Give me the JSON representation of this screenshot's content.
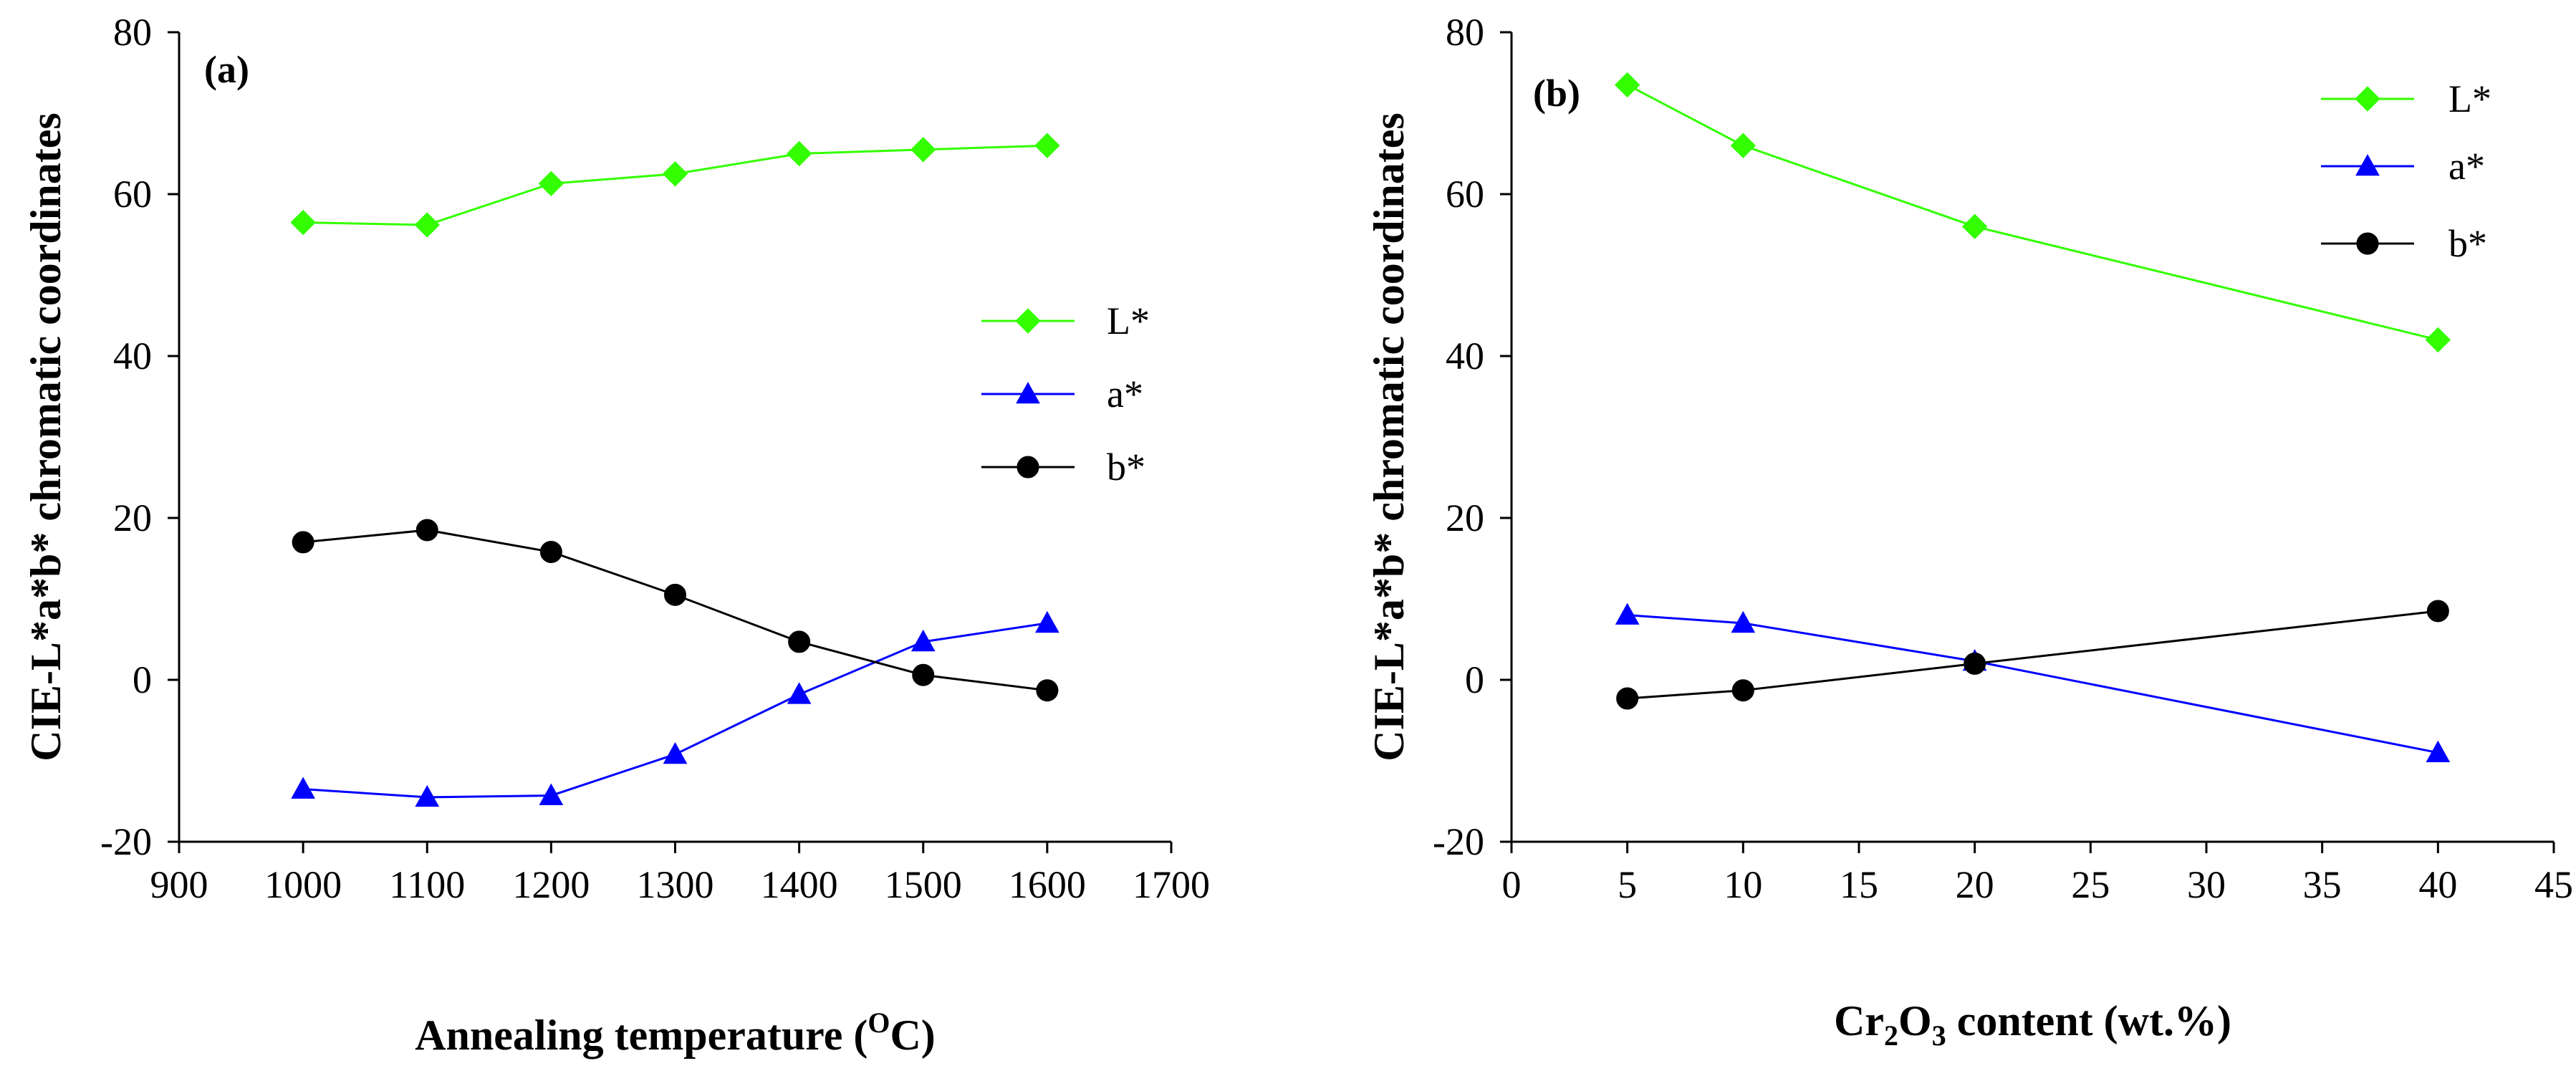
{
  "chart_data": [
    {
      "type": "line",
      "panel_label": "(a)",
      "xlabel": "Annealing temperature (",
      "xlabel_sup": "O",
      "xlabel_suffix": "C)",
      "ylabel": "CIE-L*a*b* chromatic coordinates",
      "xlim": [
        900,
        1700
      ],
      "ylim": [
        -20,
        80
      ],
      "xticks": [
        900,
        1000,
        1100,
        1200,
        1300,
        1400,
        1500,
        1600,
        1700
      ],
      "yticks": [
        -20,
        0,
        20,
        40,
        60,
        80
      ],
      "x": [
        1000,
        1100,
        1200,
        1300,
        1400,
        1500,
        1600
      ],
      "legend_position": "center-right",
      "grid": false,
      "series": [
        {
          "name": "L*",
          "color": "#33ff00",
          "marker": "diamond",
          "values": [
            56.5,
            56.2,
            61.3,
            62.5,
            65.0,
            65.5,
            66.0
          ]
        },
        {
          "name": "a*",
          "color": "#0000ff",
          "marker": "triangle",
          "values": [
            -13.5,
            -14.5,
            -14.3,
            -9.2,
            -1.8,
            4.7,
            7.0
          ]
        },
        {
          "name": "b*",
          "color": "#000000",
          "marker": "circle",
          "values": [
            17.0,
            18.5,
            15.8,
            10.5,
            4.7,
            0.6,
            -1.3
          ]
        }
      ]
    },
    {
      "type": "line",
      "panel_label": "(b)",
      "xlabel": "Cr",
      "xlabel_sub1": "2",
      "xlabel_mid": "O",
      "xlabel_sub2": "3",
      "xlabel_suffix": " content (wt.%)",
      "ylabel": "CIE-L*a*b* chromatic coordinates",
      "xlim": [
        0,
        45
      ],
      "ylim": [
        -20,
        80
      ],
      "xticks": [
        0,
        5,
        10,
        15,
        20,
        25,
        30,
        35,
        40,
        45
      ],
      "yticks": [
        -20,
        0,
        20,
        40,
        60,
        80
      ],
      "x": [
        5,
        10,
        20,
        40
      ],
      "legend_position": "top-right",
      "grid": false,
      "series": [
        {
          "name": "L*",
          "color": "#33ff00",
          "marker": "diamond",
          "values": [
            73.5,
            66.0,
            56.0,
            42.0
          ]
        },
        {
          "name": "a*",
          "color": "#0000ff",
          "marker": "triangle",
          "values": [
            8.0,
            7.0,
            2.3,
            -9.0
          ]
        },
        {
          "name": "b*",
          "color": "#000000",
          "marker": "circle",
          "values": [
            -2.3,
            -1.3,
            2.0,
            8.5
          ]
        }
      ]
    }
  ]
}
